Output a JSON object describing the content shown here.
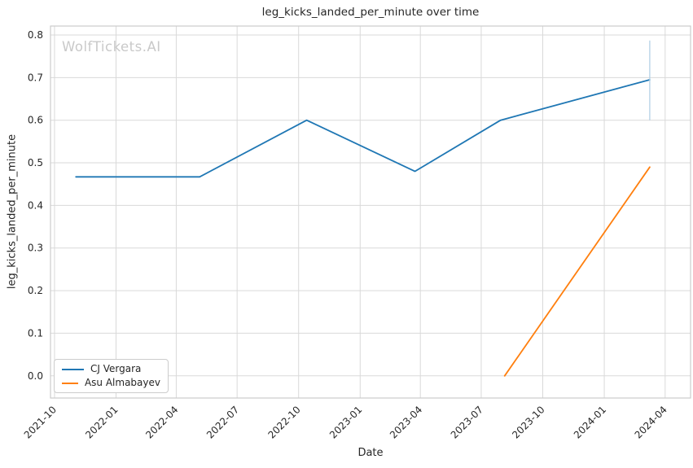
{
  "watermark": "WolfTickets.AI",
  "chart_data": {
    "type": "line",
    "title": "leg_kicks_landed_per_minute over time",
    "xlabel": "Date",
    "ylabel": "leg_kicks_landed_per_minute",
    "grid": true,
    "legend_position": "lower left",
    "background_color": "#ffffff",
    "grid_color": "#d9d9d9",
    "spine_color": "#cccccc",
    "text_color": "#262626",
    "watermark_color": "#c9c9c9",
    "xlim": [
      "2021-09-25",
      "2024-05-09"
    ],
    "ylim": [
      -0.052,
      0.821
    ],
    "x_ticks": [
      {
        "date": "2021-10-01",
        "label": "2021-10"
      },
      {
        "date": "2022-01-01",
        "label": "2022-01"
      },
      {
        "date": "2022-04-01",
        "label": "2022-04"
      },
      {
        "date": "2022-07-01",
        "label": "2022-07"
      },
      {
        "date": "2022-10-01",
        "label": "2022-10"
      },
      {
        "date": "2023-01-01",
        "label": "2023-01"
      },
      {
        "date": "2023-04-01",
        "label": "2023-04"
      },
      {
        "date": "2023-07-01",
        "label": "2023-07"
      },
      {
        "date": "2023-10-01",
        "label": "2023-10"
      },
      {
        "date": "2024-01-01",
        "label": "2024-01"
      },
      {
        "date": "2024-04-01",
        "label": "2024-04"
      }
    ],
    "y_ticks": [
      {
        "value": 0.0,
        "label": "0.0"
      },
      {
        "value": 0.1,
        "label": "0.1"
      },
      {
        "value": 0.2,
        "label": "0.2"
      },
      {
        "value": 0.3,
        "label": "0.3"
      },
      {
        "value": 0.4,
        "label": "0.4"
      },
      {
        "value": 0.5,
        "label": "0.5"
      },
      {
        "value": 0.6,
        "label": "0.6"
      },
      {
        "value": 0.7,
        "label": "0.7"
      },
      {
        "value": 0.8,
        "label": "0.8"
      }
    ],
    "series": [
      {
        "name": "CJ Vergara",
        "color": "#1f77b4",
        "points": [
          [
            "2021-11-02",
            0.467
          ],
          [
            "2022-05-06",
            0.467
          ],
          [
            "2022-10-13",
            0.6
          ],
          [
            "2023-03-24",
            0.48
          ],
          [
            "2023-07-30",
            0.6
          ],
          [
            "2024-03-09",
            0.695
          ]
        ]
      },
      {
        "name": "Asu Almabayev",
        "color": "#ff7f0e",
        "points": [
          [
            "2023-08-05",
            0.0
          ],
          [
            "2024-03-09",
            0.49
          ]
        ]
      }
    ],
    "error_bars": [
      {
        "series": "CJ Vergara",
        "x": "2024-03-09",
        "low": 0.6,
        "high": 0.787,
        "color": "#b3d1e6"
      }
    ]
  }
}
